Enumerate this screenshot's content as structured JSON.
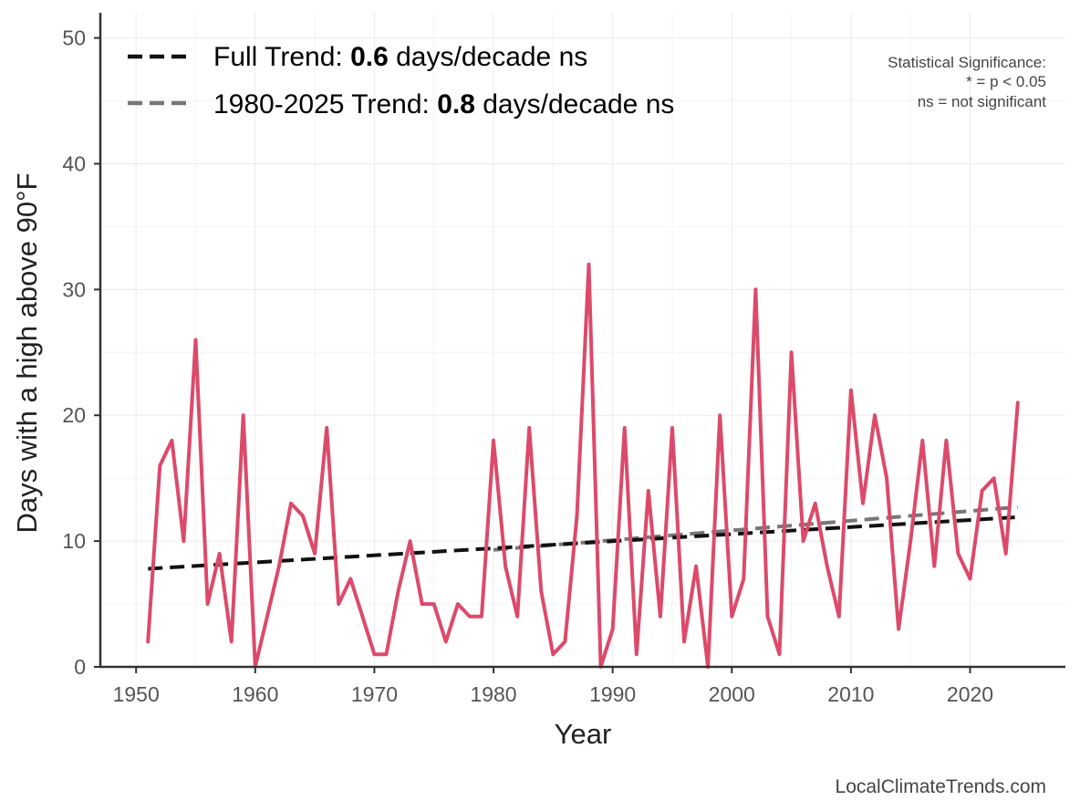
{
  "chart_data": {
    "type": "line",
    "xlabel": "Year",
    "ylabel": "Days with a high above 90°F",
    "xlim": [
      1947,
      2028
    ],
    "ylim": [
      0,
      52
    ],
    "xticks": [
      1950,
      1960,
      1970,
      1980,
      1990,
      2000,
      2010,
      2020
    ],
    "yticks": [
      0,
      10,
      20,
      30,
      40,
      50
    ],
    "grid": true,
    "colors": {
      "data": "#dc4a6a",
      "full_trend": "#111111",
      "recent_trend": "#777777",
      "axis": "#333333",
      "grid": "#ebebeb"
    },
    "series": [
      {
        "name": "Days with a high above 90°F",
        "x": [
          1951,
          1952,
          1953,
          1954,
          1955,
          1956,
          1957,
          1958,
          1959,
          1960,
          1961,
          1962,
          1963,
          1964,
          1965,
          1966,
          1967,
          1968,
          1969,
          1970,
          1971,
          1972,
          1973,
          1974,
          1975,
          1976,
          1977,
          1978,
          1979,
          1980,
          1981,
          1982,
          1983,
          1984,
          1985,
          1986,
          1987,
          1988,
          1989,
          1990,
          1991,
          1992,
          1993,
          1994,
          1995,
          1996,
          1997,
          1998,
          1999,
          2000,
          2001,
          2002,
          2003,
          2004,
          2005,
          2006,
          2007,
          2008,
          2009,
          2010,
          2011,
          2012,
          2013,
          2014,
          2015,
          2016,
          2017,
          2018,
          2019,
          2020,
          2021,
          2022,
          2023,
          2024
        ],
        "values": [
          2,
          16,
          18,
          10,
          26,
          5,
          9,
          2,
          20,
          0,
          4,
          8,
          13,
          12,
          9,
          19,
          5,
          7,
          4,
          1,
          1,
          6,
          10,
          5,
          5,
          2,
          5,
          4,
          4,
          18,
          8,
          4,
          19,
          6,
          1,
          2,
          12,
          32,
          0,
          3,
          19,
          1,
          14,
          4,
          19,
          2,
          8,
          0,
          20,
          4,
          7,
          30,
          4,
          1,
          25,
          10,
          13,
          8,
          4,
          22,
          13,
          20,
          15,
          3,
          10,
          18,
          8,
          18,
          9,
          7,
          14,
          15,
          9,
          21
        ]
      }
    ],
    "trends": [
      {
        "name": "Full Trend",
        "x": [
          1951,
          2024
        ],
        "values": [
          7.8,
          11.9
        ]
      },
      {
        "name": "1980-2025 Trend",
        "x": [
          1980,
          2024
        ],
        "values": [
          9.3,
          12.7
        ]
      }
    ],
    "legend": [
      {
        "prefix": "Full Trend: ",
        "value": "0.6",
        "suffix": " days/decade ns"
      },
      {
        "prefix": "1980-2025 Trend: ",
        "value": "0.8",
        "suffix": " days/decade ns"
      }
    ],
    "significance_note": [
      "Statistical Significance:",
      "* = p < 0.05",
      "ns = not significant"
    ],
    "credit": "LocalClimateTrends.com"
  }
}
